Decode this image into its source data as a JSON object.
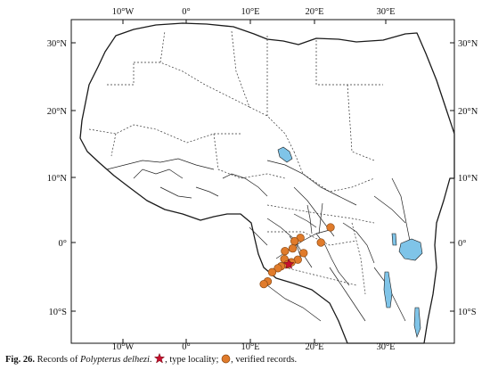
{
  "map": {
    "lon_ticks": [
      "10°W",
      "0°",
      "10°E",
      "20°E",
      "30°E"
    ],
    "lat_ticks": [
      "30°N",
      "20°N",
      "10°N",
      "0°",
      "10°S"
    ],
    "extent": {
      "lon_min": -19,
      "lon_max": 42,
      "lat_min": -15,
      "lat_max": 38
    },
    "type_locality": {
      "lon": 16.0,
      "lat": -3.3
    },
    "verified_records": [
      {
        "lon": 22.5,
        "lat": 2.3
      },
      {
        "lon": 17.8,
        "lat": 0.7
      },
      {
        "lon": 16.9,
        "lat": 0.2
      },
      {
        "lon": 21.0,
        "lat": 0.0
      },
      {
        "lon": 16.6,
        "lat": -0.9
      },
      {
        "lon": 18.3,
        "lat": -1.6
      },
      {
        "lon": 15.4,
        "lat": -1.3
      },
      {
        "lon": 15.3,
        "lat": -2.5
      },
      {
        "lon": 17.4,
        "lat": -2.6
      },
      {
        "lon": 16.4,
        "lat": -3.0
      },
      {
        "lon": 15.8,
        "lat": -3.3
      },
      {
        "lon": 14.8,
        "lat": -3.6
      },
      {
        "lon": 14.3,
        "lat": -3.9
      },
      {
        "lon": 13.4,
        "lat": -4.5
      },
      {
        "lon": 12.7,
        "lat": -5.9
      },
      {
        "lon": 12.1,
        "lat": -6.3
      }
    ],
    "colors": {
      "record": "#e07b2b",
      "record_stroke": "#8a4a15",
      "star": "#c8102e",
      "water": "#7fc4e8",
      "land_line": "#1a1a1a"
    }
  },
  "caption": {
    "fig_number": "Fig. 26.",
    "text_before": "Records of",
    "species": "Polypterus delhezi",
    "type_label": ", type locality;",
    "verified_label": ", verified records."
  }
}
